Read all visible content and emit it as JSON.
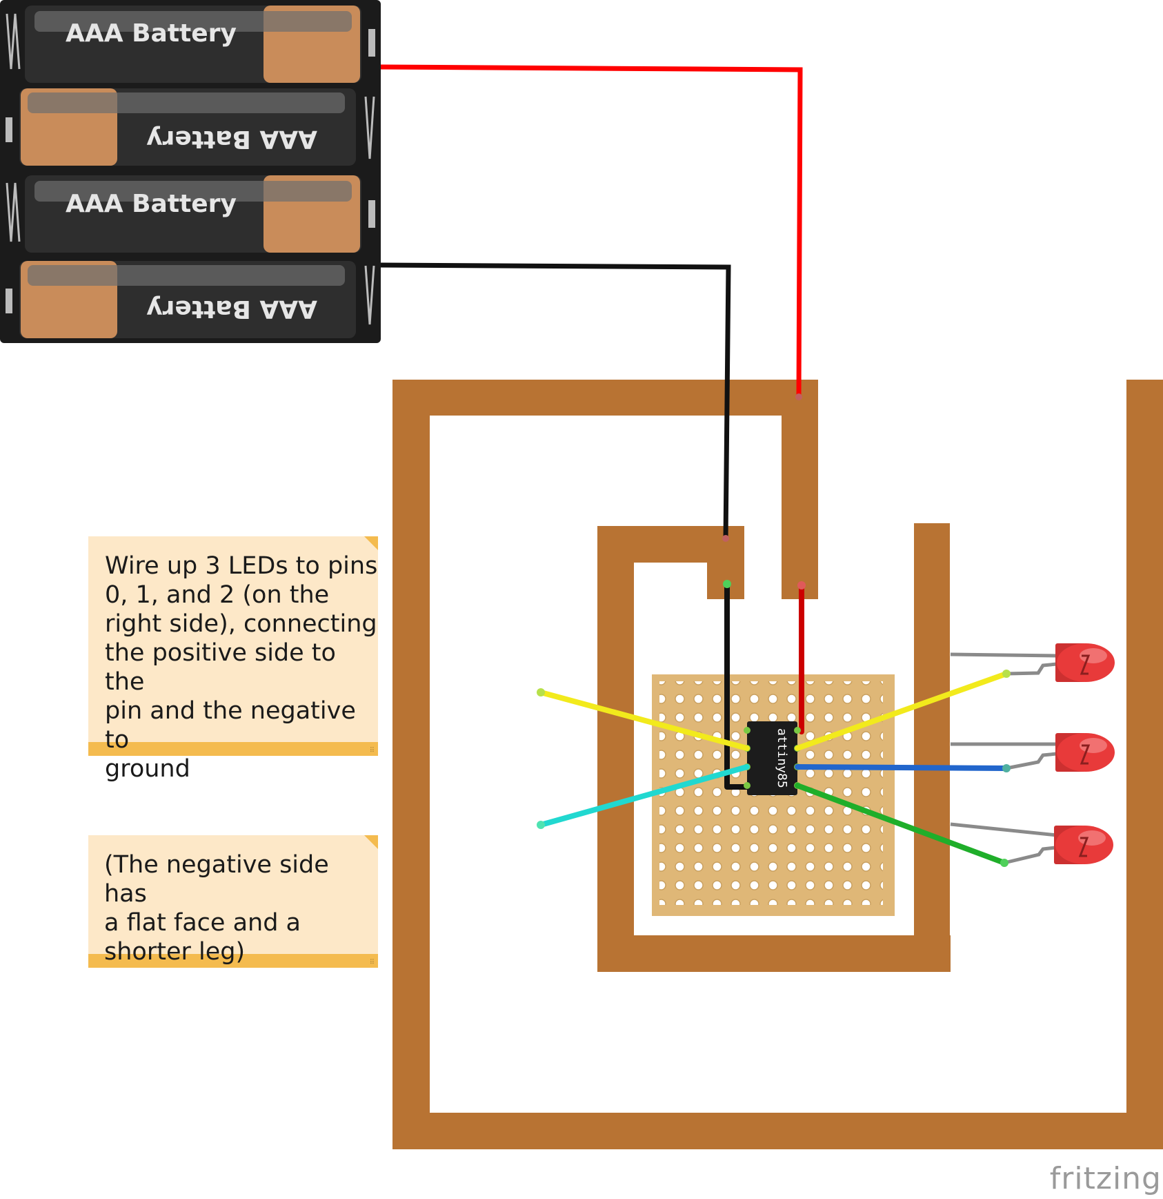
{
  "batteries": [
    {
      "label": "AAA Battery",
      "flipped": false
    },
    {
      "label": "AAA Battery",
      "flipped": true
    },
    {
      "label": "AAA Battery",
      "flipped": false
    },
    {
      "label": "AAA Battery",
      "flipped": true
    }
  ],
  "chip_label": "attiny85",
  "notes": {
    "note1": "Wire up 3 LEDs to pins\n0, 1, and 2 (on the\nright side), connecting\nthe positive side to the\npin and the negative to\nground",
    "note2": "(The negative side has\na flat face and a\nshorter leg)"
  },
  "logo": "fritzing",
  "colors": {
    "copper_trace": "#b87333",
    "perfboard": "#dfb777",
    "red_wire": "#ff0000",
    "black_wire": "#111111",
    "yellow_wire": "#f2ea1c",
    "cyan_wire": "#21d8d0",
    "blue_wire": "#2266cc",
    "green_wire": "#1fae2a",
    "led": "#e83a3a",
    "note_bg": "#fde8c8",
    "note_bar": "#f4bb4f"
  },
  "icons": [
    "battery-icon",
    "chip-icon",
    "led-icon",
    "fritzing-logo"
  ]
}
